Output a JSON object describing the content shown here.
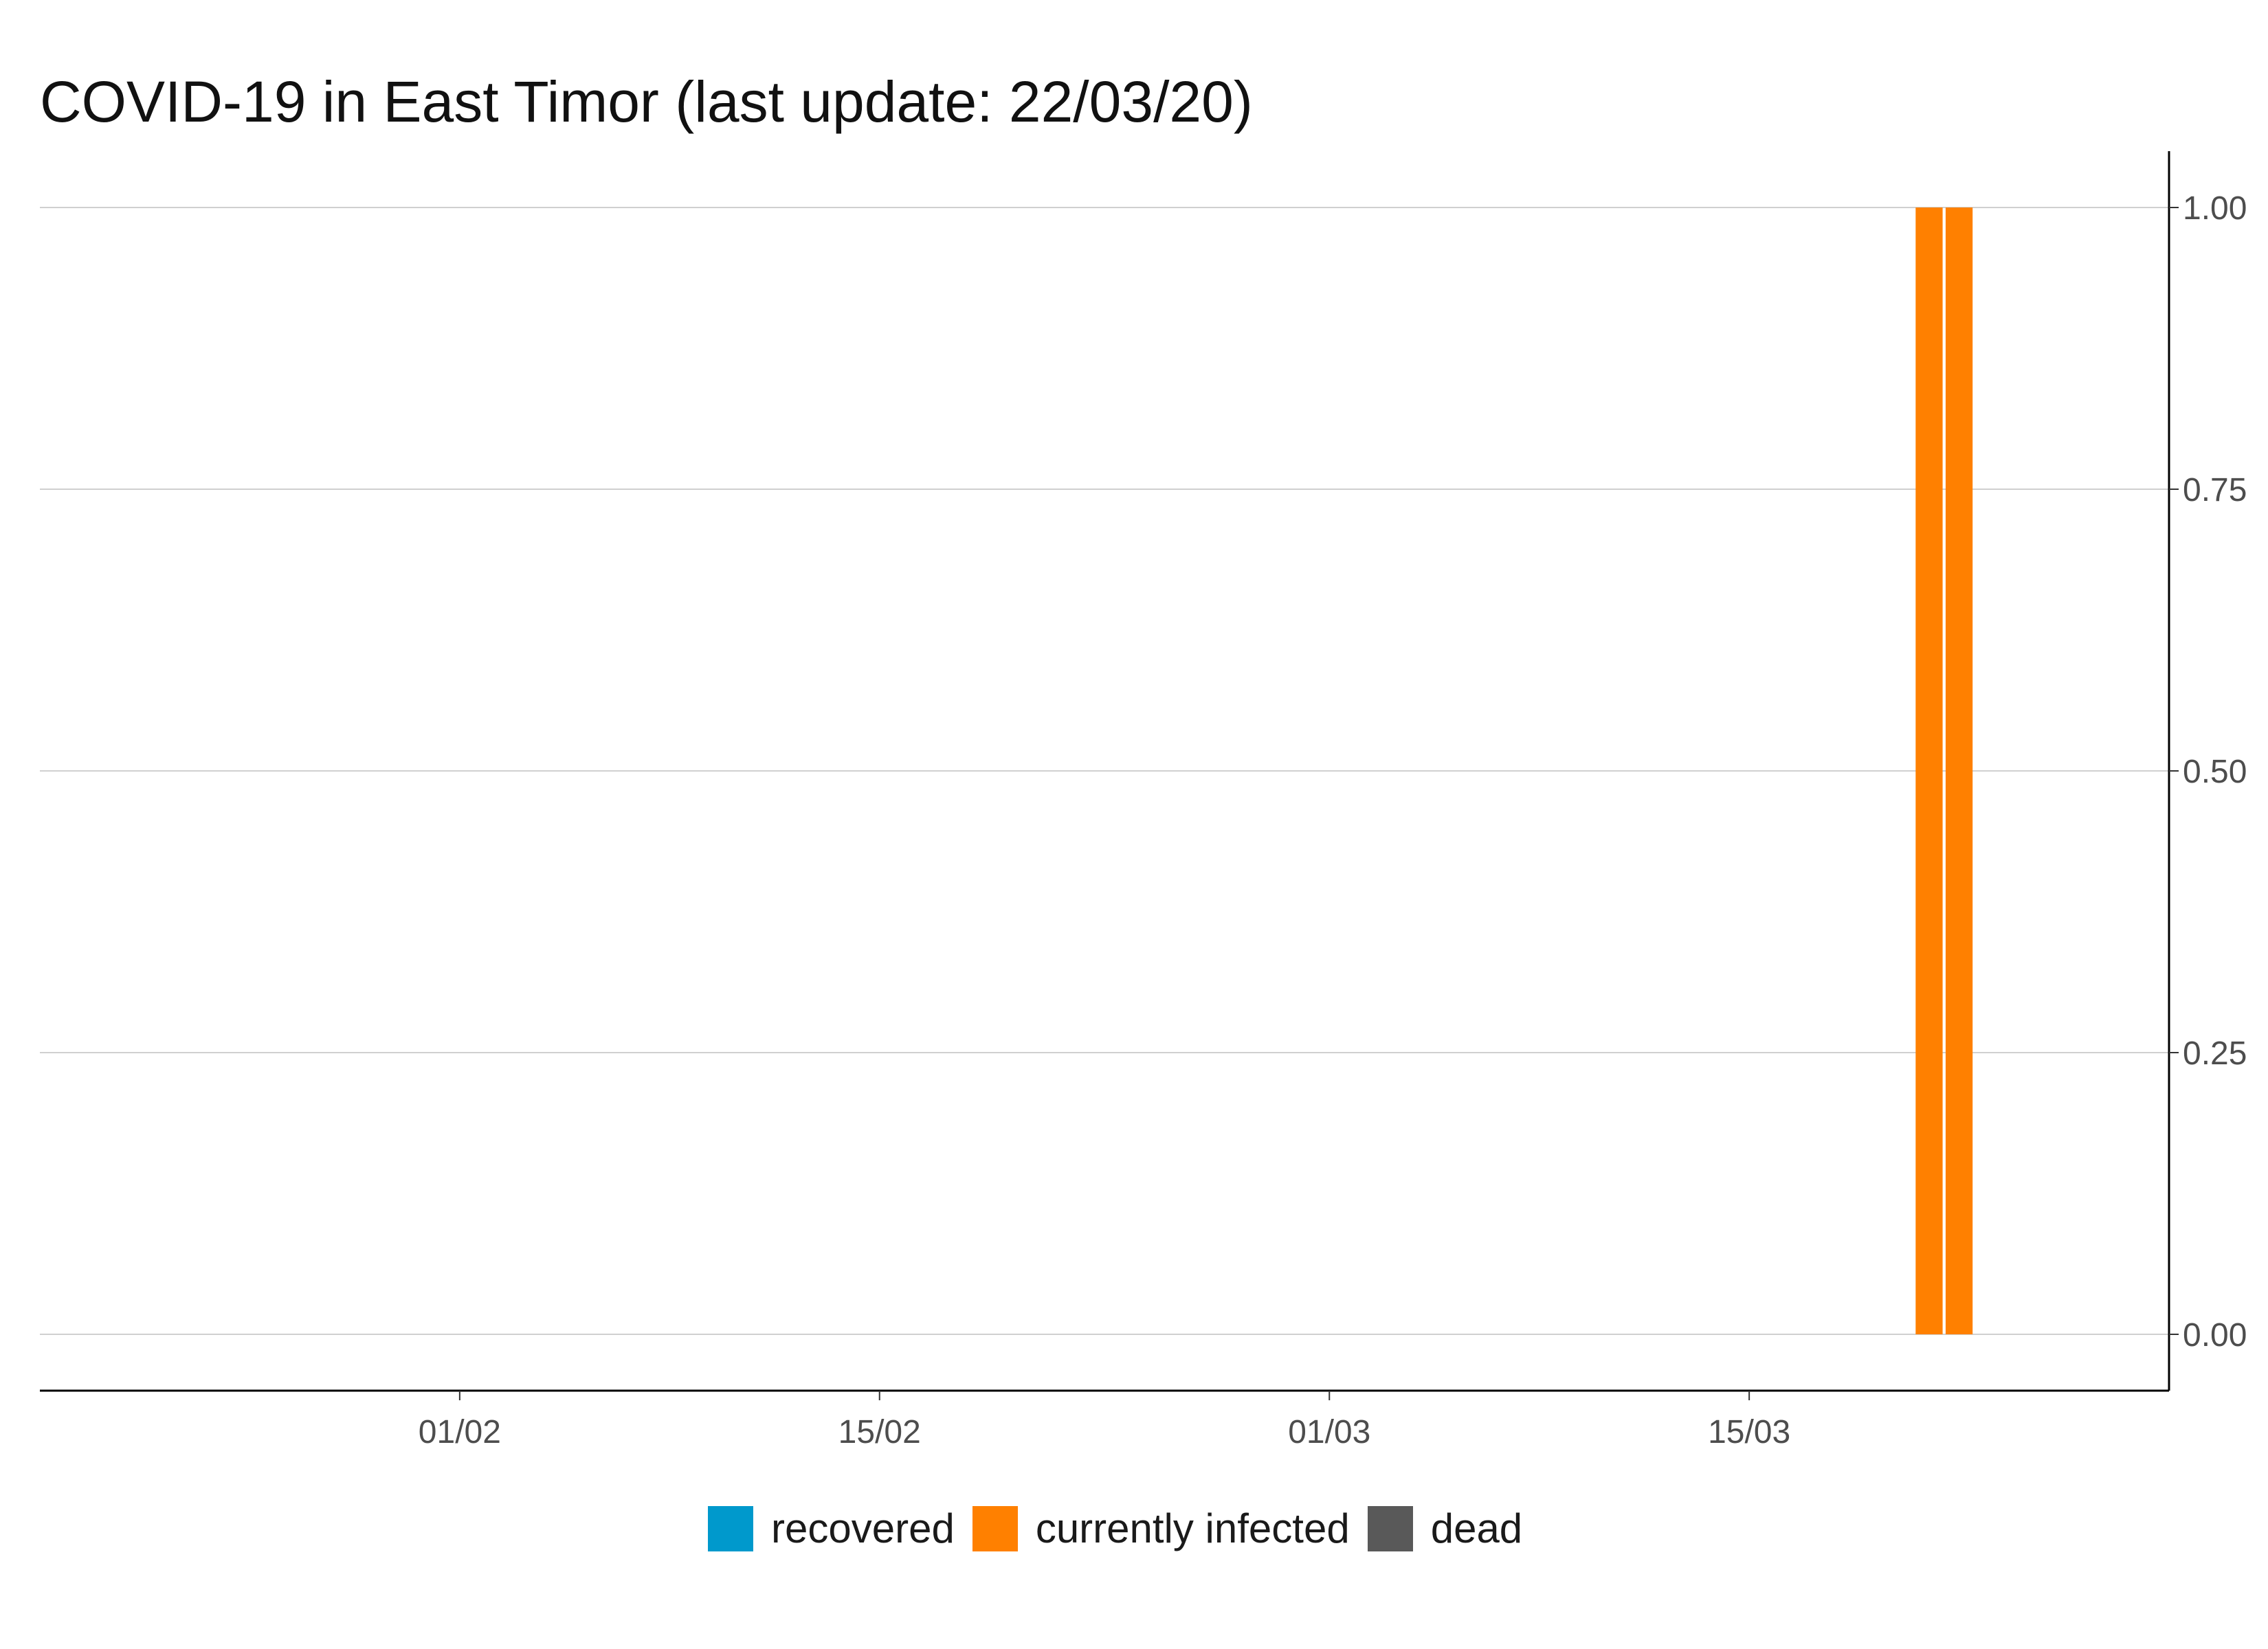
{
  "chart_data": {
    "type": "bar",
    "title": "COVID-19 in East Timor (last update: 22/03/20)",
    "xlabel": "",
    "ylabel": "",
    "x_axis": {
      "type": "date",
      "range": [
        "2020-01-18",
        "2020-03-29"
      ],
      "ticks": [
        {
          "date": "2020-02-01",
          "label": "01/02"
        },
        {
          "date": "2020-02-15",
          "label": "15/02"
        },
        {
          "date": "2020-03-01",
          "label": "01/03"
        },
        {
          "date": "2020-03-15",
          "label": "15/03"
        }
      ]
    },
    "y_axis": {
      "position": "right",
      "range": [
        -0.05,
        1.05
      ],
      "ticks": [
        0,
        0.25,
        0.5,
        0.75,
        1.0
      ],
      "tick_labels": [
        "0.00",
        "0.25",
        "0.50",
        "0.75",
        "1.00"
      ]
    },
    "grid": "horizontal",
    "stacked": true,
    "legend_position": "bottom",
    "series": [
      {
        "name": "recovered",
        "color": "#0099cc",
        "points": []
      },
      {
        "name": "currently infected",
        "color": "#ff8000",
        "points": [
          {
            "date": "2020-03-21",
            "value": 1
          },
          {
            "date": "2020-03-22",
            "value": 1
          }
        ]
      },
      {
        "name": "dead",
        "color": "#595959",
        "points": []
      }
    ]
  }
}
